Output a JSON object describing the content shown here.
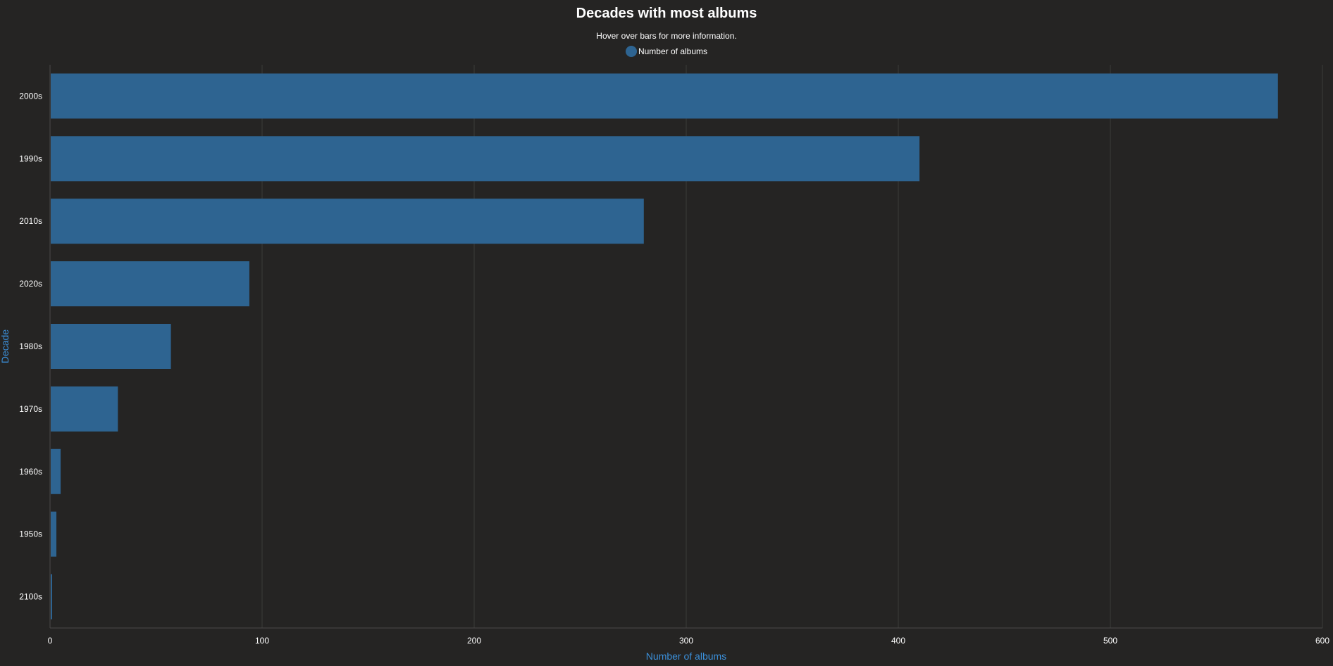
{
  "chart_data": {
    "type": "bar",
    "orientation": "horizontal",
    "title": "Decades with most albums",
    "subtitle": "Hover over bars for more information.",
    "categories": [
      "2000s",
      "1990s",
      "2010s",
      "2020s",
      "1980s",
      "1970s",
      "1960s",
      "1950s",
      "2100s"
    ],
    "series": [
      {
        "name": "Number of albums",
        "color": "#2e6491",
        "values": [
          579,
          410,
          280,
          94,
          57,
          32,
          5,
          3,
          1
        ]
      }
    ],
    "xlabel": "Number of albums",
    "ylabel": "Decade",
    "xlim": [
      0,
      600
    ],
    "xticks": [
      "0",
      "100",
      "200",
      "300",
      "400",
      "500",
      "600"
    ],
    "grid": true,
    "legend_position": "top-center",
    "colors": {
      "background": "#252423",
      "axis_title": "#3b8fd9",
      "grid": "#3c3b3a",
      "text": "#ffffff"
    }
  }
}
